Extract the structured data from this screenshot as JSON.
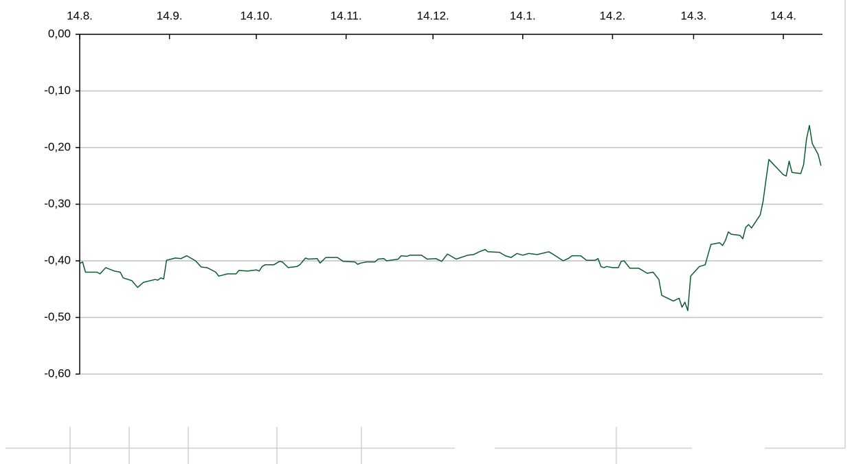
{
  "chart_data": {
    "type": "line",
    "x": [
      0,
      1,
      2,
      6,
      7,
      9,
      12,
      14,
      15,
      18,
      20,
      22,
      26,
      27,
      28,
      29,
      30,
      33,
      35,
      37,
      40,
      42,
      44,
      47,
      48,
      51,
      54,
      55,
      58,
      61,
      62,
      63,
      64,
      67,
      69,
      70,
      72,
      75,
      76,
      78,
      79,
      82,
      83,
      85,
      89,
      91,
      95,
      96,
      97,
      99,
      102,
      103,
      105,
      106,
      110,
      111,
      113,
      114,
      118,
      120,
      123,
      125,
      127,
      130,
      134,
      136,
      138,
      140,
      141,
      145,
      147,
      149,
      151,
      153,
      155,
      158,
      162,
      163,
      167,
      169,
      170,
      173,
      175,
      178,
      179,
      180,
      181,
      182,
      184,
      186,
      187,
      188,
      190,
      193,
      196,
      198,
      200,
      201,
      205,
      207,
      208,
      209,
      210,
      211,
      214,
      216,
      218,
      221,
      222,
      223,
      224,
      225,
      228,
      229,
      230,
      231,
      232,
      235,
      236,
      237,
      238,
      243,
      244,
      245,
      246,
      249,
      250,
      251,
      252,
      253,
      255,
      256
    ],
    "values": [
      -0.405,
      -0.402,
      -0.42,
      -0.42,
      -0.423,
      -0.412,
      -0.418,
      -0.42,
      -0.43,
      -0.435,
      -0.447,
      -0.438,
      -0.433,
      -0.434,
      -0.43,
      -0.432,
      -0.399,
      -0.395,
      -0.396,
      -0.391,
      -0.4,
      -0.411,
      -0.412,
      -0.42,
      -0.427,
      -0.423,
      -0.423,
      -0.417,
      -0.418,
      -0.416,
      -0.418,
      -0.41,
      -0.407,
      -0.407,
      -0.401,
      -0.402,
      -0.412,
      -0.41,
      -0.407,
      -0.395,
      -0.397,
      -0.396,
      -0.404,
      -0.394,
      -0.394,
      -0.401,
      -0.402,
      -0.406,
      -0.404,
      -0.402,
      -0.402,
      -0.397,
      -0.396,
      -0.4,
      -0.397,
      -0.391,
      -0.392,
      -0.39,
      -0.39,
      -0.397,
      -0.396,
      -0.401,
      -0.388,
      -0.397,
      -0.39,
      -0.389,
      -0.384,
      -0.38,
      -0.384,
      -0.385,
      -0.391,
      -0.394,
      -0.387,
      -0.39,
      -0.387,
      -0.389,
      -0.384,
      -0.387,
      -0.4,
      -0.395,
      -0.391,
      -0.391,
      -0.399,
      -0.399,
      -0.396,
      -0.41,
      -0.412,
      -0.41,
      -0.412,
      -0.412,
      -0.401,
      -0.4,
      -0.413,
      -0.413,
      -0.422,
      -0.42,
      -0.433,
      -0.461,
      -0.471,
      -0.466,
      -0.482,
      -0.473,
      -0.488,
      -0.427,
      -0.41,
      -0.407,
      -0.371,
      -0.368,
      -0.373,
      -0.364,
      -0.349,
      -0.353,
      -0.355,
      -0.361,
      -0.341,
      -0.336,
      -0.342,
      -0.319,
      -0.295,
      -0.257,
      -0.221,
      -0.248,
      -0.25,
      -0.224,
      -0.244,
      -0.246,
      -0.23,
      -0.185,
      -0.161,
      -0.193,
      -0.212,
      -0.232
    ],
    "color": "#0b5a2c",
    "xlim": [
      0,
      256.5
    ],
    "xticks": [
      {
        "value": 0,
        "label": "14.8."
      },
      {
        "value": 31,
        "label": "14.9."
      },
      {
        "value": 61,
        "label": "14.10."
      },
      {
        "value": 92,
        "label": "14.11."
      },
      {
        "value": 122,
        "label": "14.12."
      },
      {
        "value": 153,
        "label": "14.1."
      },
      {
        "value": 184,
        "label": "14.2."
      },
      {
        "value": 212,
        "label": "14.3."
      },
      {
        "value": 243,
        "label": "14.4."
      }
    ],
    "ylim": [
      -0.6,
      0
    ],
    "yticks": [
      {
        "value": 0,
        "label": "0,00"
      },
      {
        "value": -0.1,
        "label": "-0,10"
      },
      {
        "value": -0.2,
        "label": "-0,20"
      },
      {
        "value": -0.3,
        "label": "-0,30"
      },
      {
        "value": -0.4,
        "label": "-0,40"
      },
      {
        "value": -0.5,
        "label": "-0,50"
      },
      {
        "value": -0.6,
        "label": "-0,60"
      }
    ],
    "grid": true
  }
}
